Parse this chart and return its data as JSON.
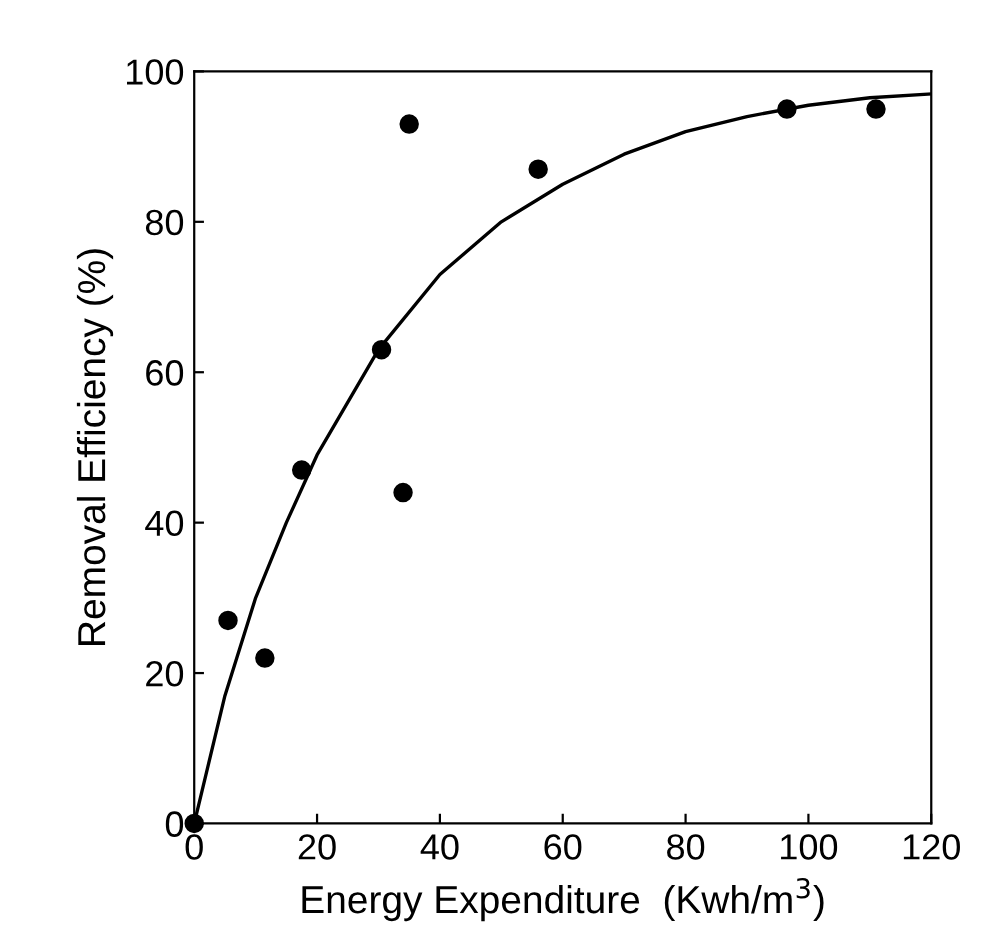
{
  "chart_data": {
    "type": "scatter",
    "xlabel": "Energy Expenditure  (Kwh/m$^{3}$)",
    "ylabel": "Removal Efficiency (%)",
    "xlim": [
      0,
      120
    ],
    "ylim": [
      0,
      100
    ],
    "xticks": [
      0,
      20,
      40,
      60,
      80,
      100,
      120
    ],
    "yticks": [
      0,
      20,
      40,
      60,
      80,
      100
    ],
    "grid": false,
    "series": [
      {
        "marker": "circle",
        "color": "#000000",
        "x": [
          0,
          5.5,
          11.5,
          17.5,
          30.5,
          34,
          35,
          56,
          96.5,
          111
        ],
        "values": [
          0,
          27,
          22,
          47,
          63,
          44,
          93,
          87,
          95,
          95
        ]
      },
      {
        "type": "line",
        "marker": "none",
        "color": "#000000",
        "line_style": "solid",
        "x": [
          0,
          5,
          10,
          15,
          20,
          30,
          40,
          50,
          60,
          70,
          80,
          90,
          100,
          110,
          120
        ],
        "values": [
          0,
          17,
          30,
          40,
          49,
          63,
          73,
          80,
          85,
          89,
          92,
          94,
          95.5,
          96.5,
          97
        ]
      }
    ]
  }
}
